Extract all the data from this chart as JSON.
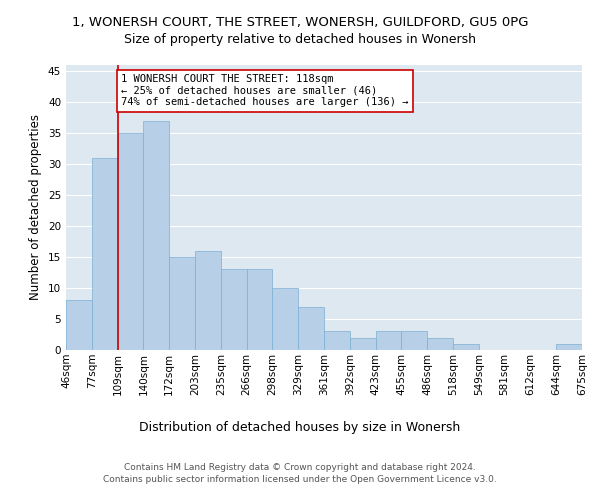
{
  "title": "1, WONERSH COURT, THE STREET, WONERSH, GUILDFORD, GU5 0PG",
  "subtitle": "Size of property relative to detached houses in Wonersh",
  "xlabel": "Distribution of detached houses by size in Wonersh",
  "ylabel": "Number of detached properties",
  "bar_values": [
    8,
    31,
    35,
    37,
    15,
    16,
    13,
    13,
    10,
    7,
    3,
    2,
    3,
    3,
    2,
    1,
    0,
    0,
    0,
    1
  ],
  "bar_labels": [
    "46sqm",
    "77sqm",
    "109sqm",
    "140sqm",
    "172sqm",
    "203sqm",
    "235sqm",
    "266sqm",
    "298sqm",
    "329sqm",
    "361sqm",
    "392sqm",
    "423sqm",
    "455sqm",
    "486sqm",
    "518sqm",
    "549sqm",
    "581sqm",
    "612sqm",
    "644sqm",
    "675sqm"
  ],
  "ylim": [
    0,
    46
  ],
  "yticks": [
    0,
    5,
    10,
    15,
    20,
    25,
    30,
    35,
    40,
    45
  ],
  "bar_color": "#b8cfe8",
  "bar_edge_color": "#7aafd4",
  "bar_edge_width": 0.5,
  "vline_x": 2,
  "vline_color": "#cc0000",
  "annotation_text": "1 WONERSH COURT THE STREET: 118sqm\n← 25% of detached houses are smaller (46)\n74% of semi-detached houses are larger (136) →",
  "annotation_box_color": "#ffffff",
  "annotation_box_edge": "#cc0000",
  "plot_bg_color": "#dde8f0",
  "footer_line1": "Contains HM Land Registry data © Crown copyright and database right 2024.",
  "footer_line2": "Contains public sector information licensed under the Open Government Licence v3.0.",
  "title_fontsize": 9.5,
  "subtitle_fontsize": 9,
  "xlabel_fontsize": 9,
  "ylabel_fontsize": 8.5,
  "tick_fontsize": 7.5,
  "annotation_fontsize": 7.5,
  "footer_fontsize": 6.5
}
